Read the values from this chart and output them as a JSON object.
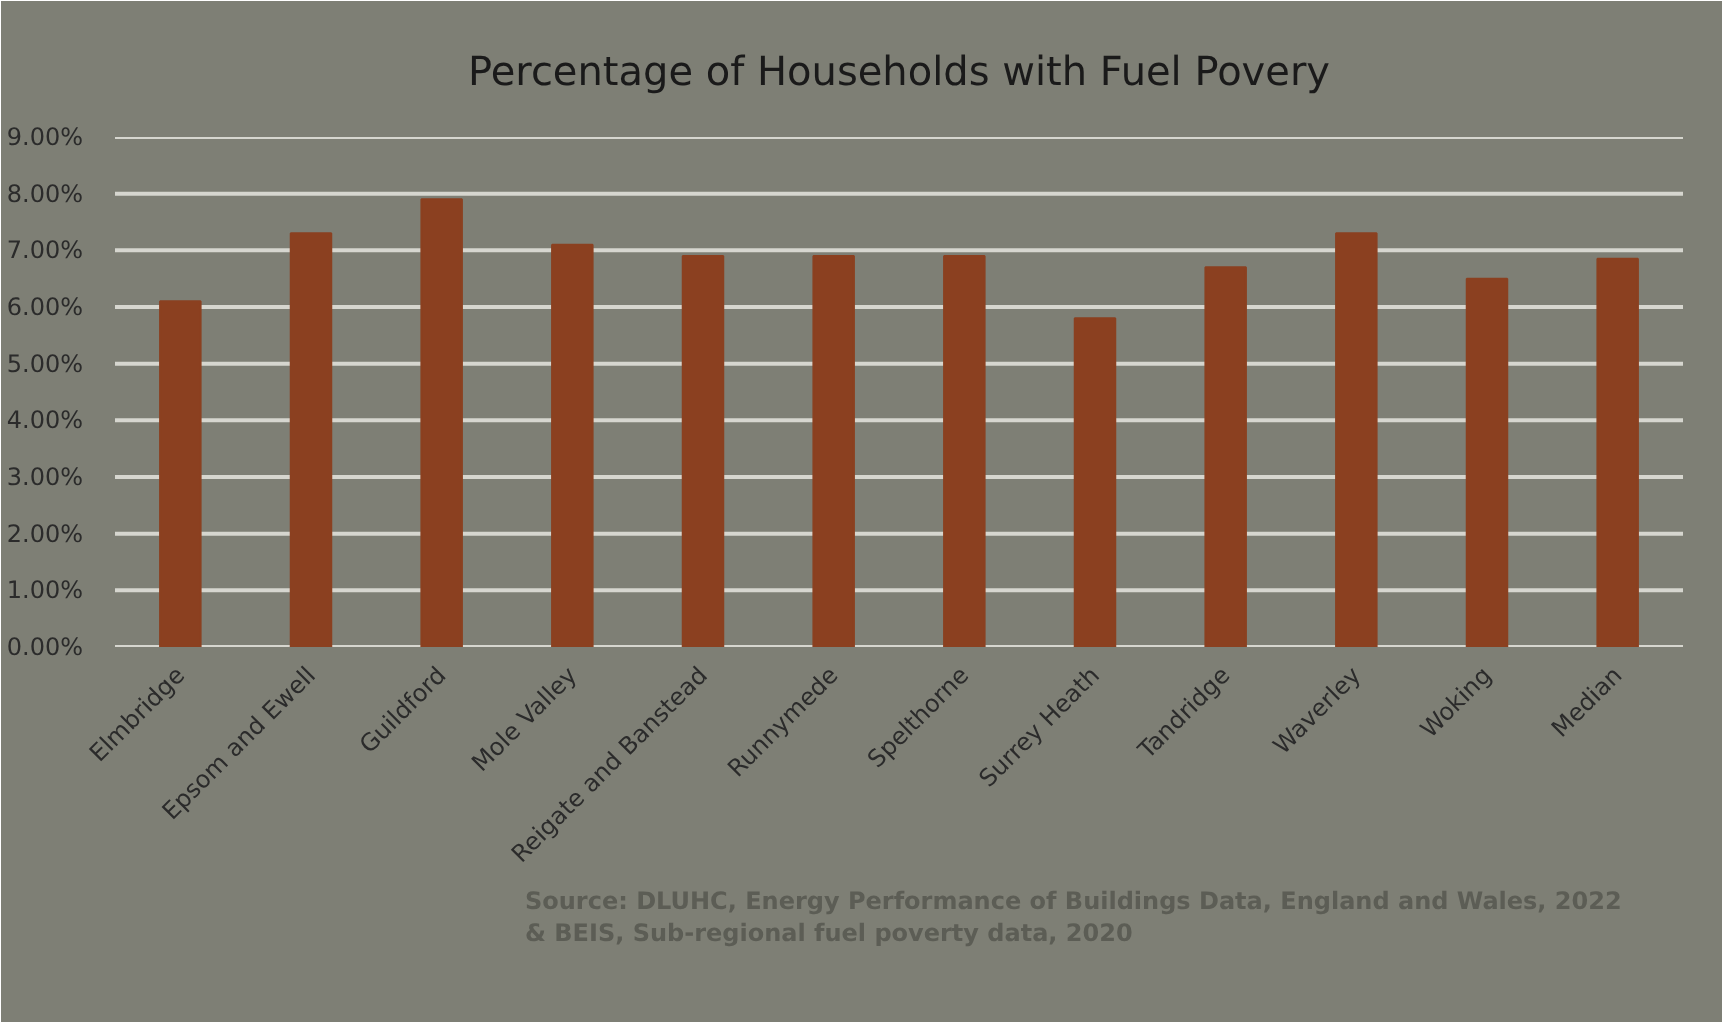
{
  "chart_data": {
    "type": "bar",
    "title": "Percentage of Households with Fuel Povery",
    "categories": [
      "Elmbridge",
      "Epsom and Ewell",
      "Guildford",
      "Mole Valley",
      "Reigate and Banstead",
      "Runnymede",
      "Spelthorne",
      "Surrey Heath",
      "Tandridge",
      "Waverley",
      "Woking",
      "Median"
    ],
    "values": [
      6.1,
      7.3,
      7.9,
      7.1,
      6.9,
      6.9,
      6.9,
      5.8,
      6.7,
      7.3,
      6.5,
      6.85
    ],
    "color": "#8b4020",
    "ylim": [
      0,
      9
    ],
    "yticks": [
      {
        "value": 0,
        "label": "0.00%"
      },
      {
        "value": 1,
        "label": "1.00%"
      },
      {
        "value": 2,
        "label": "2.00%"
      },
      {
        "value": 3,
        "label": "3.00%"
      },
      {
        "value": 4,
        "label": "4.00%"
      },
      {
        "value": 5,
        "label": "5.00%"
      },
      {
        "value": 6,
        "label": "6.00%"
      },
      {
        "value": 7,
        "label": "7.00%"
      },
      {
        "value": 8,
        "label": "8.00%"
      },
      {
        "value": 9,
        "label": "9.00%"
      }
    ],
    "grid": "y",
    "annotations": [
      "Source: DLUHC, Energy Performance of Buildings Data, England and Wales, 2022 & BEIS, Sub-regional fuel poverty data, 2020"
    ]
  }
}
